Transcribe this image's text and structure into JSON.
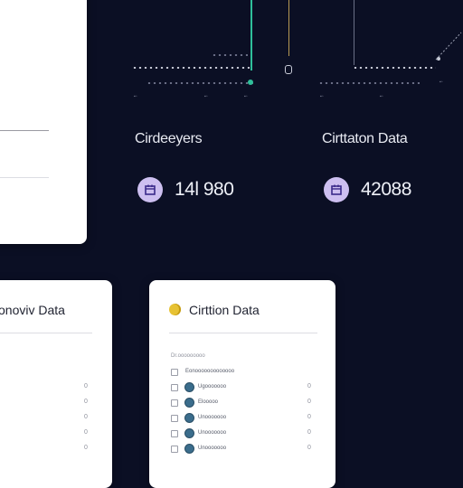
{
  "cards": [
    {
      "title": "Cirdeeyers",
      "value": "14l 980",
      "icon": "calendar-icon"
    },
    {
      "title": "Cirttaton Data",
      "value": "42088",
      "icon": "calendar-icon"
    }
  ],
  "panels": {
    "left_partial": {
      "title": "onoviv Data"
    },
    "center": {
      "title": "Cirttion Data",
      "header": "Dr.ooooooooo",
      "first_row": "Eonooooooooooooo",
      "rows": [
        {
          "label": "Ugooooooo",
          "value": "0"
        },
        {
          "label": "Elooooo",
          "value": "0"
        },
        {
          "label": "Unooooooo",
          "value": "0"
        },
        {
          "label": "Unooooooo",
          "value": "0"
        },
        {
          "label": "Unooooooo",
          "value": "0"
        }
      ],
      "right_values": [
        "0",
        "0",
        "0",
        "0",
        "0",
        "0"
      ]
    }
  },
  "left_panel_values": [
    "0",
    "0",
    "0",
    "0",
    "0",
    "0"
  ],
  "colors": {
    "accent_green": "#2fbf9a",
    "accent_gold": "#e7c233",
    "accent_purple": "#cdbff0"
  }
}
